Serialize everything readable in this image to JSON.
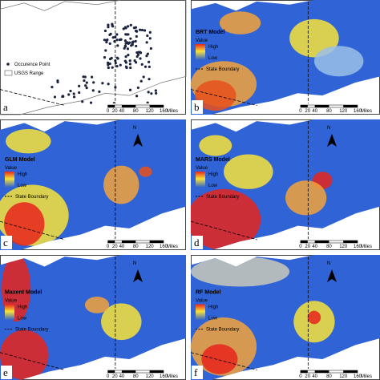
{
  "panels": [
    {
      "letter": "a",
      "legend": [
        "Occurence Point",
        "USGS Range"
      ],
      "scale": [
        "0",
        "20",
        "40",
        "80",
        "120",
        "160"
      ],
      "unit": "Miles"
    },
    {
      "letter": "b",
      "title": "BRT Model",
      "legend_title": "Value",
      "high": "High",
      "low": "Low",
      "boundary": "State Boundary",
      "scale": [
        "0",
        "20",
        "40",
        "80",
        "120",
        "160"
      ],
      "unit": "Miles"
    },
    {
      "letter": "c",
      "title": "GLM Model",
      "legend_title": "Value",
      "high": "High",
      "low": "Low",
      "boundary": "State Boundary",
      "scale": [
        "0",
        "20",
        "40",
        "80",
        "120",
        "160"
      ],
      "unit": "Miles",
      "north": "N"
    },
    {
      "letter": "d",
      "title": "MARS Model",
      "legend_title": "Value",
      "high": "High",
      "low": "Low",
      "boundary": "State Boundary",
      "scale": [
        "0",
        "20",
        "40",
        "80",
        "120",
        "160"
      ],
      "unit": "Miles",
      "north": "N"
    },
    {
      "letter": "e",
      "title": "Maxent Model",
      "legend_title": "Value",
      "high": "High",
      "low": "Low",
      "boundary": "State Boundary",
      "scale": [
        "0",
        "20",
        "40",
        "80",
        "120",
        "160"
      ],
      "unit": "Miles",
      "north": "N"
    },
    {
      "letter": "f",
      "title": "RF Model",
      "legend_title": "Value",
      "high": "High",
      "low": "Low",
      "boundary": "State Boundary",
      "scale": [
        "0",
        "20",
        "40",
        "80",
        "120",
        "160"
      ],
      "unit": "Miles",
      "north": "N"
    }
  ]
}
